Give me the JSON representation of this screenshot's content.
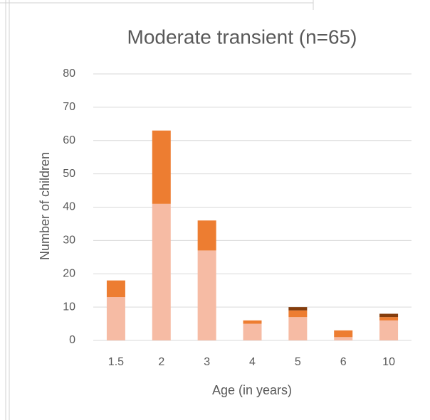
{
  "chart_data": {
    "type": "stacked_bar",
    "title": "Moderate transient (n=65)",
    "x_label": "Age (in years)",
    "y_label": "Number of children",
    "categories": [
      "1.5",
      "2",
      "3",
      "4",
      "5",
      "6",
      "10"
    ],
    "series": [
      {
        "color": "#f6bba4",
        "values": [
          13,
          41,
          27,
          5,
          7,
          1,
          6
        ]
      },
      {
        "color": "#ed7d31",
        "values": [
          5,
          22,
          9,
          1,
          2,
          2,
          1
        ]
      },
      {
        "color": "#843c0c",
        "values": [
          0,
          0,
          0,
          0,
          1,
          0,
          1
        ]
      }
    ],
    "ylim": [
      0,
      80
    ],
    "yticks": [
      0,
      10,
      20,
      30,
      40,
      50,
      60,
      70,
      80
    ],
    "grid": true
  }
}
